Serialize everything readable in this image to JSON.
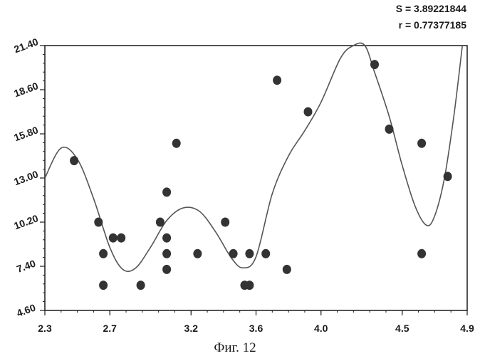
{
  "chart_data": {
    "type": "scatter",
    "title": "",
    "xlabel": "",
    "ylabel": "",
    "xlim": [
      2.3,
      4.9
    ],
    "ylim": [
      4.6,
      21.4
    ],
    "x_ticks": [
      "2.3",
      "2.7",
      "3.2",
      "3.6",
      "4.0",
      "4.5",
      "4.9"
    ],
    "y_ticks": [
      "4.60",
      "7.40",
      "10.20",
      "13.00",
      "15.80",
      "18.60",
      "21.40"
    ],
    "stats": [
      "S = 3.89221844",
      "r = 0.77377185"
    ],
    "caption": "Фиг. 12",
    "grid": false,
    "series": [
      {
        "points": [
          [
            2.48,
            14.1
          ],
          [
            2.63,
            10.2
          ],
          [
            2.66,
            8.2
          ],
          [
            2.66,
            6.2
          ],
          [
            2.72,
            9.2
          ],
          [
            2.77,
            9.2
          ],
          [
            2.89,
            6.2
          ],
          [
            3.01,
            10.2
          ],
          [
            3.05,
            9.2
          ],
          [
            3.05,
            8.2
          ],
          [
            3.05,
            7.2
          ],
          [
            3.05,
            12.1
          ],
          [
            3.11,
            15.2
          ],
          [
            3.24,
            8.2
          ],
          [
            3.41,
            10.2
          ],
          [
            3.46,
            8.2
          ],
          [
            3.53,
            6.2
          ],
          [
            3.56,
            6.2
          ],
          [
            3.56,
            8.2
          ],
          [
            3.66,
            8.2
          ],
          [
            3.73,
            19.2
          ],
          [
            3.79,
            7.2
          ],
          [
            3.92,
            17.2
          ],
          [
            4.33,
            20.2
          ],
          [
            4.42,
            16.1
          ],
          [
            4.62,
            15.2
          ],
          [
            4.62,
            8.2
          ],
          [
            4.78,
            13.1
          ]
        ]
      }
    ],
    "fit_curve": [
      [
        2.3,
        13.0
      ],
      [
        2.4,
        14.9
      ],
      [
        2.5,
        14.2
      ],
      [
        2.6,
        11.7
      ],
      [
        2.7,
        8.6
      ],
      [
        2.78,
        7.2
      ],
      [
        2.86,
        7.3
      ],
      [
        2.95,
        8.6
      ],
      [
        3.05,
        10.3
      ],
      [
        3.15,
        11.1
      ],
      [
        3.25,
        10.9
      ],
      [
        3.35,
        9.6
      ],
      [
        3.45,
        7.9
      ],
      [
        3.52,
        7.3
      ],
      [
        3.6,
        8.0
      ],
      [
        3.7,
        12.0
      ],
      [
        3.8,
        14.4
      ],
      [
        3.9,
        16.0
      ],
      [
        4.0,
        17.8
      ],
      [
        4.12,
        20.6
      ],
      [
        4.2,
        21.4
      ],
      [
        4.27,
        21.4
      ],
      [
        4.33,
        19.7
      ],
      [
        4.42,
        16.9
      ],
      [
        4.5,
        13.8
      ],
      [
        4.58,
        11.2
      ],
      [
        4.65,
        10.0
      ],
      [
        4.7,
        10.6
      ],
      [
        4.76,
        13.0
      ],
      [
        4.82,
        17.1
      ],
      [
        4.87,
        21.4
      ]
    ],
    "colors": {
      "points": "#333333",
      "line": "#555555",
      "axes": "#1a1a1a"
    }
  }
}
